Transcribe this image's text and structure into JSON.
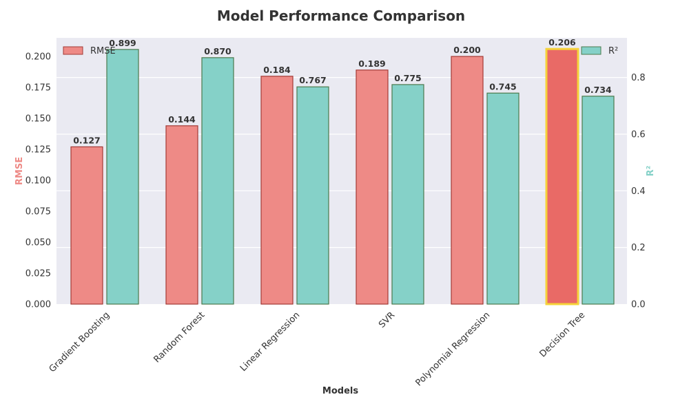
{
  "chart_data": {
    "type": "bar",
    "title": "Model Performance Comparison",
    "xlabel": "Models",
    "ylabel": "RMSE",
    "y2label": "R²",
    "categories": [
      "Gradient Boosting",
      "Random Forest",
      "Linear Regression",
      "SVR",
      "Polynomial Regression",
      "Decision Tree"
    ],
    "series": [
      {
        "name": "RMSE",
        "axis": "left",
        "values": [
          0.127,
          0.144,
          0.184,
          0.189,
          0.2,
          0.206
        ],
        "labels": [
          "0.127",
          "0.144",
          "0.184",
          "0.189",
          "0.200",
          "0.206"
        ],
        "color": "#ee8a86",
        "edge_color": "#a33a36",
        "highlight_color": "#e96a66",
        "highlight_edge": "#f5d33a",
        "highlight_index": 5
      },
      {
        "name": "R²",
        "axis": "right",
        "values": [
          0.899,
          0.87,
          0.767,
          0.775,
          0.745,
          0.734
        ],
        "labels": [
          "0.899",
          "0.870",
          "0.767",
          "0.775",
          "0.745",
          "0.734"
        ],
        "color": "#85d1c8",
        "edge_color": "#4c7a4c"
      }
    ],
    "ylim": [
      0,
      0.215
    ],
    "y2lim": [
      0,
      0.94
    ],
    "yticks": [
      "0.000",
      "0.025",
      "0.050",
      "0.075",
      "0.100",
      "0.125",
      "0.150",
      "0.175",
      "0.200"
    ],
    "ytick_values": [
      0,
      0.025,
      0.05,
      0.075,
      0.1,
      0.125,
      0.15,
      0.175,
      0.2
    ],
    "y2ticks": [
      "0.0",
      "0.2",
      "0.4",
      "0.6",
      "0.8"
    ],
    "y2tick_values": [
      0,
      0.2,
      0.4,
      0.6,
      0.8
    ],
    "grid": true,
    "legend": [
      {
        "label": "RMSE",
        "placement": "top-left"
      },
      {
        "label": "R²",
        "placement": "top-right"
      }
    ],
    "colors": {
      "plot_bg": "#eaeaf2",
      "grid": "#ffffff",
      "rmse_axis_label": "#ee8a86",
      "r2_axis_label": "#85d1c8"
    }
  }
}
